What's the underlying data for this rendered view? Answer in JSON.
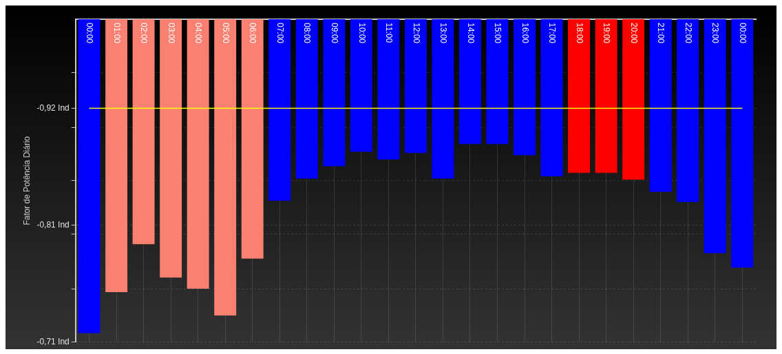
{
  "chart_data": {
    "type": "bar",
    "ylabel": "Fator de Potência Diário",
    "categories": [
      "00:00",
      "01:00",
      "02:00",
      "03:00",
      "04:00",
      "05:00",
      "06:00",
      "07:00",
      "08:00",
      "09:00",
      "10:00",
      "11:00",
      "12:00",
      "13:00",
      "14:00",
      "15:00",
      "16:00",
      "17:00",
      "18:00",
      "19:00",
      "20:00",
      "21:00",
      "22:00",
      "23:00",
      "00:00"
    ],
    "values": [
      0.282,
      0.245,
      0.202,
      0.232,
      0.242,
      0.266,
      0.215,
      0.163,
      0.143,
      0.132,
      0.119,
      0.126,
      0.12,
      0.143,
      0.112,
      0.112,
      0.122,
      0.141,
      0.138,
      0.138,
      0.144,
      0.155,
      0.164,
      0.21,
      0.223
    ],
    "colors": [
      "#0000ff",
      "#fa8072",
      "#fa8072",
      "#fa8072",
      "#fa8072",
      "#fa8072",
      "#fa8072",
      "#0000ff",
      "#0000ff",
      "#0000ff",
      "#0000ff",
      "#0000ff",
      "#0000ff",
      "#0000ff",
      "#0000ff",
      "#0000ff",
      "#0000ff",
      "#0000ff",
      "#ff0000",
      "#ff0000",
      "#ff0000",
      "#0000ff",
      "#0000ff",
      "#0000ff",
      "#0000ff"
    ],
    "base": [
      -1.0,
      -1.0,
      -1.0,
      -1.0,
      -1.0,
      -1.0,
      -1.0,
      -1.0,
      -1.0,
      -1.0,
      -1.0,
      -1.0,
      -1.0,
      -1.0,
      -1.0,
      -1.0,
      -1.0,
      -1.0,
      -1.0,
      -1.0,
      -1.0,
      -1.0,
      -1.0,
      -1.0,
      -1.0
    ],
    "ylim": [
      -0.71,
      -1.0
    ],
    "yticks": [
      {
        "value": -0.952,
        "label": null
      },
      {
        "value": -0.92,
        "label": "-0,92 Ind"
      },
      {
        "value": -0.903,
        "label": null
      },
      {
        "value": -0.855,
        "label": null
      },
      {
        "value": -0.815,
        "label": "-0,81 Ind"
      },
      {
        "value": -0.807,
        "label": null
      },
      {
        "value": -0.758,
        "label": null
      },
      {
        "value": -0.71,
        "label": "-0,71 Ind"
      }
    ],
    "ref_lines": [
      {
        "axis": "y",
        "value": -0.92,
        "color": "#ffff00"
      }
    ],
    "grid": true
  }
}
